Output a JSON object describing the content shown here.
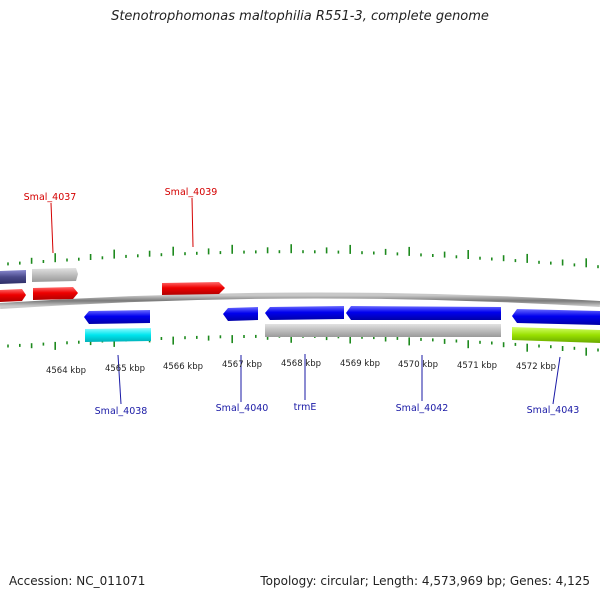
{
  "title": "Stenotrophomonas maltophilia R551-3, complete genome",
  "footer": {
    "accession": "Accession: NC_011071",
    "summary": "Topology: circular; Length: 4,573,969 bp; Genes: 4,125"
  },
  "colors": {
    "forward_cds": "#ee0000",
    "reverse_cds": "#0000ee",
    "trna_rrna": "#b8b8b8",
    "other_a": "#00e5ee",
    "other_b": "#99e000",
    "other_c": "#4a4a8a",
    "tick": "#1e8a1e",
    "backbone": "#8a8a8a"
  },
  "ticks": {
    "labels": [
      "4564 kbp",
      "4565 kbp",
      "4566 kbp",
      "4567 kbp",
      "4568 kbp",
      "4569 kbp",
      "4570 kbp",
      "4571 kbp",
      "4572 kbp"
    ]
  },
  "labels": {
    "top": [
      "Smal_4037",
      "Smal_4039"
    ],
    "bottom": [
      "Smal_4038",
      "Smal_4040",
      "trmE",
      "Smal_4042",
      "Smal_4043"
    ]
  },
  "features": [
    {
      "id": "f1",
      "kind": "other_c",
      "strand": "fwd-outer"
    },
    {
      "id": "f2",
      "kind": "trna_rrna",
      "strand": "fwd-outer"
    },
    {
      "id": "f3",
      "kind": "forward_cds",
      "strand": "fwd"
    },
    {
      "id": "f4",
      "kind": "forward_cds",
      "strand": "fwd"
    },
    {
      "id": "f5",
      "kind": "forward_cds",
      "strand": "fwd"
    },
    {
      "id": "f6",
      "kind": "reverse_cds",
      "strand": "rev"
    },
    {
      "id": "f7",
      "kind": "other_a",
      "strand": "rev-outer"
    },
    {
      "id": "f8",
      "kind": "reverse_cds",
      "strand": "rev"
    },
    {
      "id": "f9",
      "kind": "reverse_cds",
      "strand": "rev"
    },
    {
      "id": "f10",
      "kind": "reverse_cds",
      "strand": "rev"
    },
    {
      "id": "f11",
      "kind": "trna_rrna",
      "strand": "rev-outer"
    },
    {
      "id": "f12",
      "kind": "reverse_cds",
      "strand": "rev"
    },
    {
      "id": "f13",
      "kind": "other_b",
      "strand": "rev-outer"
    }
  ]
}
